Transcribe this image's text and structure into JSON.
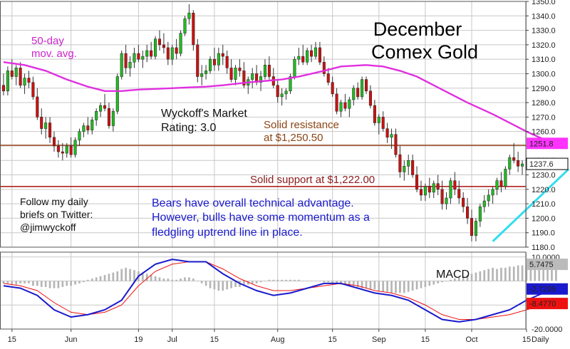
{
  "chart_data": {
    "type": "candlestick",
    "title_lines": [
      "December",
      "Comex Gold"
    ],
    "interval_label": "Daily",
    "ylim": [
      1180,
      1350
    ],
    "y_ticks": [
      1180,
      1190,
      1200,
      1210,
      1220,
      1230,
      1240,
      1250,
      1260,
      1270,
      1280,
      1290,
      1300,
      1310,
      1320,
      1330,
      1340,
      1350
    ],
    "y_tick_labels": [
      "1180.0",
      "1190.0",
      "1200.0",
      "1210.0",
      "1220.0",
      "1230.0",
      "1240.0",
      "1250.0",
      "1260.0",
      "1270.0",
      "1280.0",
      "1290.0",
      "1300.0",
      "1310.0",
      "1320.0",
      "1330.0",
      "1340.0",
      "1350.0"
    ],
    "x_labels": [
      {
        "text": "15",
        "bar": 2
      },
      {
        "text": "Jun",
        "bar": 16
      },
      {
        "text": "19",
        "bar": 32
      },
      {
        "text": "Jul",
        "bar": 40
      },
      {
        "text": "15",
        "bar": 50
      },
      {
        "text": "Aug",
        "bar": 65
      },
      {
        "text": "15",
        "bar": 78
      },
      {
        "text": "Sep",
        "bar": 89
      },
      {
        "text": "15",
        "bar": 100
      },
      {
        "text": "Oct",
        "bar": 111
      },
      {
        "text": "15",
        "bar": 124
      }
    ],
    "ohlc": [
      [
        1292,
        1300,
        1285,
        1288
      ],
      [
        1288,
        1305,
        1285,
        1302
      ],
      [
        1302,
        1310,
        1296,
        1298
      ],
      [
        1298,
        1306,
        1292,
        1304
      ],
      [
        1304,
        1308,
        1290,
        1292
      ],
      [
        1292,
        1300,
        1286,
        1297
      ],
      [
        1297,
        1302,
        1290,
        1294
      ],
      [
        1294,
        1298,
        1282,
        1284
      ],
      [
        1284,
        1290,
        1268,
        1270
      ],
      [
        1270,
        1276,
        1258,
        1262
      ],
      [
        1262,
        1270,
        1255,
        1266
      ],
      [
        1266,
        1270,
        1252,
        1256
      ],
      [
        1256,
        1260,
        1246,
        1250
      ],
      [
        1250,
        1254,
        1242,
        1246
      ],
      [
        1246,
        1252,
        1240,
        1245
      ],
      [
        1245,
        1252,
        1242,
        1250
      ],
      [
        1250,
        1256,
        1242,
        1244
      ],
      [
        1244,
        1256,
        1242,
        1254
      ],
      [
        1254,
        1262,
        1250,
        1260
      ],
      [
        1260,
        1266,
        1256,
        1264
      ],
      [
        1264,
        1270,
        1258,
        1261
      ],
      [
        1261,
        1270,
        1258,
        1268
      ],
      [
        1268,
        1276,
        1264,
        1274
      ],
      [
        1274,
        1280,
        1270,
        1278
      ],
      [
        1278,
        1286,
        1274,
        1276
      ],
      [
        1276,
        1280,
        1262,
        1264
      ],
      [
        1264,
        1276,
        1260,
        1274
      ],
      [
        1274,
        1300,
        1272,
        1298
      ],
      [
        1298,
        1316,
        1296,
        1314
      ],
      [
        1314,
        1320,
        1300,
        1304
      ],
      [
        1304,
        1312,
        1298,
        1308
      ],
      [
        1308,
        1318,
        1304,
        1314
      ],
      [
        1314,
        1320,
        1308,
        1310
      ],
      [
        1310,
        1316,
        1304,
        1312
      ],
      [
        1312,
        1320,
        1308,
        1316
      ],
      [
        1316,
        1322,
        1310,
        1312
      ],
      [
        1312,
        1326,
        1310,
        1324
      ],
      [
        1324,
        1330,
        1316,
        1320
      ],
      [
        1320,
        1328,
        1314,
        1318
      ],
      [
        1318,
        1322,
        1306,
        1310
      ],
      [
        1310,
        1320,
        1306,
        1318
      ],
      [
        1318,
        1324,
        1310,
        1314
      ],
      [
        1314,
        1330,
        1312,
        1328
      ],
      [
        1328,
        1340,
        1326,
        1338
      ],
      [
        1338,
        1348,
        1334,
        1342
      ],
      [
        1342,
        1344,
        1316,
        1320
      ],
      [
        1320,
        1324,
        1294,
        1298
      ],
      [
        1298,
        1306,
        1292,
        1300
      ],
      [
        1300,
        1306,
        1296,
        1302
      ],
      [
        1302,
        1312,
        1300,
        1310
      ],
      [
        1310,
        1318,
        1302,
        1306
      ],
      [
        1306,
        1318,
        1302,
        1314
      ],
      [
        1314,
        1320,
        1306,
        1312
      ],
      [
        1312,
        1316,
        1300,
        1304
      ],
      [
        1304,
        1310,
        1294,
        1296
      ],
      [
        1296,
        1306,
        1292,
        1304
      ],
      [
        1304,
        1310,
        1298,
        1302
      ],
      [
        1302,
        1308,
        1290,
        1292
      ],
      [
        1292,
        1298,
        1286,
        1296
      ],
      [
        1296,
        1304,
        1290,
        1300
      ],
      [
        1300,
        1306,
        1292,
        1294
      ],
      [
        1294,
        1302,
        1288,
        1298
      ],
      [
        1298,
        1310,
        1296,
        1306
      ],
      [
        1306,
        1312,
        1296,
        1298
      ],
      [
        1298,
        1304,
        1290,
        1292
      ],
      [
        1292,
        1296,
        1280,
        1284
      ],
      [
        1284,
        1290,
        1278,
        1286
      ],
      [
        1286,
        1290,
        1282,
        1288
      ],
      [
        1288,
        1300,
        1286,
        1298
      ],
      [
        1298,
        1312,
        1296,
        1310
      ],
      [
        1310,
        1318,
        1306,
        1312
      ],
      [
        1312,
        1320,
        1306,
        1308
      ],
      [
        1308,
        1318,
        1306,
        1316
      ],
      [
        1316,
        1320,
        1308,
        1312
      ],
      [
        1312,
        1322,
        1310,
        1318
      ],
      [
        1318,
        1322,
        1306,
        1308
      ],
      [
        1308,
        1312,
        1298,
        1300
      ],
      [
        1300,
        1304,
        1292,
        1294
      ],
      [
        1294,
        1298,
        1284,
        1286
      ],
      [
        1286,
        1290,
        1272,
        1274
      ],
      [
        1274,
        1282,
        1270,
        1280
      ],
      [
        1280,
        1286,
        1274,
        1276
      ],
      [
        1276,
        1284,
        1270,
        1282
      ],
      [
        1282,
        1292,
        1278,
        1290
      ],
      [
        1290,
        1294,
        1282,
        1284
      ],
      [
        1284,
        1298,
        1282,
        1296
      ],
      [
        1296,
        1298,
        1286,
        1288
      ],
      [
        1288,
        1292,
        1276,
        1278
      ],
      [
        1278,
        1282,
        1264,
        1266
      ],
      [
        1266,
        1272,
        1258,
        1270
      ],
      [
        1270,
        1274,
        1260,
        1262
      ],
      [
        1262,
        1266,
        1252,
        1256
      ],
      [
        1256,
        1262,
        1248,
        1258
      ],
      [
        1258,
        1262,
        1242,
        1244
      ],
      [
        1244,
        1250,
        1228,
        1232
      ],
      [
        1232,
        1240,
        1226,
        1236
      ],
      [
        1236,
        1244,
        1230,
        1240
      ],
      [
        1240,
        1244,
        1228,
        1230
      ],
      [
        1230,
        1236,
        1218,
        1220
      ],
      [
        1220,
        1226,
        1212,
        1216
      ],
      [
        1216,
        1224,
        1212,
        1222
      ],
      [
        1222,
        1228,
        1214,
        1218
      ],
      [
        1218,
        1226,
        1214,
        1224
      ],
      [
        1224,
        1230,
        1216,
        1220
      ],
      [
        1220,
        1226,
        1206,
        1210
      ],
      [
        1210,
        1218,
        1206,
        1214
      ],
      [
        1214,
        1228,
        1210,
        1226
      ],
      [
        1226,
        1232,
        1216,
        1220
      ],
      [
        1220,
        1226,
        1210,
        1214
      ],
      [
        1214,
        1218,
        1204,
        1208
      ],
      [
        1208,
        1214,
        1196,
        1200
      ],
      [
        1200,
        1206,
        1184,
        1188
      ],
      [
        1188,
        1200,
        1184,
        1198
      ],
      [
        1198,
        1210,
        1194,
        1208
      ],
      [
        1208,
        1216,
        1204,
        1212
      ],
      [
        1212,
        1220,
        1208,
        1216
      ],
      [
        1216,
        1222,
        1210,
        1220
      ],
      [
        1220,
        1228,
        1216,
        1226
      ],
      [
        1226,
        1232,
        1218,
        1222
      ],
      [
        1222,
        1236,
        1220,
        1234
      ],
      [
        1234,
        1244,
        1230,
        1242
      ],
      [
        1242,
        1252,
        1238,
        1240
      ],
      [
        1240,
        1246,
        1232,
        1236
      ],
      [
        1236,
        1240,
        1230,
        1237.6
      ]
    ],
    "moving_average_50_day": {
      "name_lines": [
        "50-day",
        "mov. avg."
      ],
      "color": "#e030e0",
      "points": [
        [
          0,
          1308
        ],
        [
          5,
          1306
        ],
        [
          10,
          1302
        ],
        [
          15,
          1296
        ],
        [
          20,
          1291
        ],
        [
          24,
          1288
        ],
        [
          28,
          1288
        ],
        [
          32,
          1289
        ],
        [
          40,
          1290
        ],
        [
          48,
          1291
        ],
        [
          52,
          1292
        ],
        [
          58,
          1294
        ],
        [
          62,
          1295
        ],
        [
          66,
          1296
        ],
        [
          70,
          1298
        ],
        [
          76,
          1302
        ],
        [
          80,
          1305
        ],
        [
          86,
          1306
        ],
        [
          90,
          1305
        ],
        [
          94,
          1302
        ],
        [
          98,
          1298
        ],
        [
          104,
          1289
        ],
        [
          110,
          1280
        ],
        [
          116,
          1272
        ],
        [
          120,
          1266
        ],
        [
          124,
          1260
        ],
        [
          127,
          1256
        ],
        [
          130,
          1252.5
        ],
        [
          131,
          1251.8
        ]
      ]
    },
    "resistance": {
      "value": 1250.5,
      "label_lines": [
        "Solid resistance",
        "at $1,250.50"
      ],
      "color": "#a0522d"
    },
    "support": {
      "value": 1222.0,
      "label": "Solid support at $1,222.00",
      "color": "#b22222"
    },
    "trendline": {
      "from": [
        116,
        1184
      ],
      "to": [
        134,
        1234
      ],
      "color": "#33ddee"
    },
    "last_price": {
      "value": 1237.6,
      "label": "1237.6"
    },
    "ma_price_label": {
      "value": 1251.8,
      "label": "1251.8",
      "color": "#ff33ff"
    },
    "macd": {
      "title": "MACD",
      "ylim": [
        -20,
        12
      ],
      "y_ticks": [
        10,
        -20
      ],
      "y_tick_labels": [
        "10.0000",
        "-20.0000"
      ],
      "readouts": [
        {
          "value": 5.7475,
          "label": "5.7475",
          "bg": "#bbbbbb"
        },
        {
          "value": -2.7295,
          "label": "-2.7295",
          "bg": "#1a1acc"
        },
        {
          "value": -8.477,
          "label": "-8.4770",
          "bg": "#ee1111"
        }
      ],
      "macd_line": {
        "color": "#1a1acc",
        "points": [
          [
            0,
            -2
          ],
          [
            4,
            -3
          ],
          [
            8,
            -6
          ],
          [
            12,
            -12
          ],
          [
            16,
            -15
          ],
          [
            20,
            -14
          ],
          [
            24,
            -12
          ],
          [
            28,
            -8
          ],
          [
            32,
            2
          ],
          [
            36,
            7
          ],
          [
            40,
            9
          ],
          [
            44,
            8
          ],
          [
            48,
            8
          ],
          [
            52,
            3
          ],
          [
            56,
            -1
          ],
          [
            60,
            -4
          ],
          [
            64,
            -6
          ],
          [
            68,
            -5
          ],
          [
            72,
            -3
          ],
          [
            76,
            -1
          ],
          [
            80,
            -1
          ],
          [
            84,
            -3
          ],
          [
            88,
            -5
          ],
          [
            92,
            -6
          ],
          [
            96,
            -8
          ],
          [
            100,
            -12
          ],
          [
            104,
            -16
          ],
          [
            108,
            -17
          ],
          [
            112,
            -16
          ],
          [
            116,
            -14
          ],
          [
            120,
            -12
          ],
          [
            124,
            -8
          ],
          [
            128,
            -5
          ],
          [
            131,
            -2.7295
          ]
        ]
      },
      "signal_line": {
        "color": "#ee1111",
        "points": [
          [
            0,
            -1
          ],
          [
            4,
            -2
          ],
          [
            8,
            -4
          ],
          [
            12,
            -9
          ],
          [
            16,
            -13
          ],
          [
            20,
            -14
          ],
          [
            24,
            -13
          ],
          [
            28,
            -10
          ],
          [
            32,
            -2
          ],
          [
            36,
            4
          ],
          [
            40,
            7
          ],
          [
            44,
            8
          ],
          [
            48,
            8
          ],
          [
            52,
            5
          ],
          [
            56,
            1
          ],
          [
            60,
            -2
          ],
          [
            64,
            -4
          ],
          [
            68,
            -4
          ],
          [
            72,
            -3
          ],
          [
            76,
            -2
          ],
          [
            80,
            -1
          ],
          [
            84,
            -2
          ],
          [
            88,
            -4
          ],
          [
            92,
            -5
          ],
          [
            96,
            -7
          ],
          [
            100,
            -10
          ],
          [
            104,
            -14
          ],
          [
            108,
            -16
          ],
          [
            112,
            -16
          ],
          [
            116,
            -15
          ],
          [
            120,
            -14
          ],
          [
            124,
            -12
          ],
          [
            128,
            -10
          ],
          [
            131,
            -8.477
          ]
        ]
      },
      "histogram": [
        -1,
        -1,
        -1.5,
        -1.5,
        -1,
        -1,
        -1,
        -2,
        -2,
        -2.5,
        -2.5,
        -3,
        -3,
        -3,
        -2.5,
        -2,
        -2,
        -1.5,
        -1,
        -0.5,
        0.5,
        1,
        1.5,
        2,
        2.5,
        3,
        3.5,
        4,
        5,
        5.5,
        5,
        4.5,
        4,
        3.5,
        3,
        2.5,
        2,
        1.5,
        1,
        1,
        0.5,
        0.5,
        1,
        1.5,
        1.5,
        1,
        0,
        -1,
        -2,
        -3,
        -3.5,
        -4,
        -4,
        -3.5,
        -3,
        -2.5,
        -2.5,
        -2,
        -1.5,
        -1,
        -1,
        -0.5,
        0,
        0.5,
        0.5,
        0.5,
        0.5,
        0.5,
        0.5,
        0.5,
        0.5,
        0,
        0,
        0,
        0,
        0,
        -0.5,
        -0.5,
        -1,
        -1,
        -1.5,
        -1.5,
        -2,
        -2,
        -2.5,
        -3,
        -3,
        -3.5,
        -3.5,
        -4,
        -4.5,
        -4.5,
        -5,
        -5,
        -5,
        -5,
        -4.5,
        -4,
        -3.5,
        -3,
        -2.5,
        -2,
        -1.5,
        -1,
        -0.5,
        0,
        0.5,
        1,
        1.5,
        2,
        2.5,
        3,
        3.5,
        4,
        4.5,
        5,
        5.5,
        5,
        5.5,
        5.5,
        6,
        6,
        6.5,
        6.5,
        6.5,
        6.5,
        6,
        6,
        5.5,
        5.7475,
        5.7475,
        5.7475
      ]
    },
    "annotations": {
      "rating_lines": [
        "Wyckoff's Market",
        "Rating: 3.0"
      ],
      "twitter_lines": [
        "Follow my daily",
        "briefs on Twitter:",
        "@jimwyckoff"
      ],
      "commentary_lines": [
        "Bears have overall technical advantage.",
        "However, bulls have some momentum as a",
        "fledgling uptrend line in place."
      ]
    }
  },
  "colors": {
    "up_candle": "#22bb22",
    "down_candle": "#cc1111",
    "wick": "#333333",
    "grid": "#c8c8c8",
    "commentary_text": "#1a1acc",
    "ma_label_text": "#cc22cc",
    "resistance_text": "#8b4513",
    "support_text": "#8b1a1a"
  }
}
